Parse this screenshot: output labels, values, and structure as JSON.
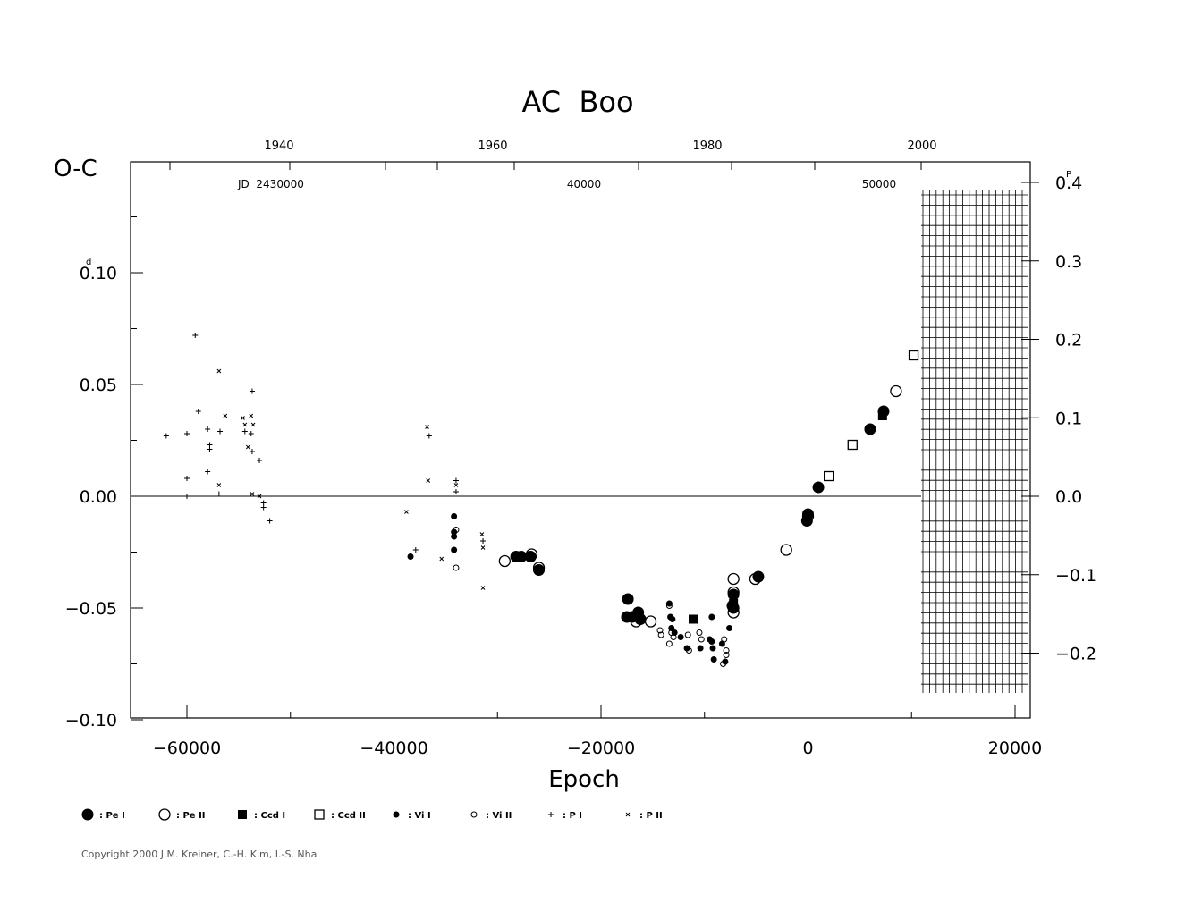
{
  "chart_data": {
    "type": "scatter",
    "title": "AC  Boo",
    "ylabel": "O-C",
    "xlabel": "Epoch",
    "xlim": [
      -65000,
      21500
    ],
    "ylim": [
      -0.1,
      0.15
    ],
    "x_ticks": [
      "-60000",
      "-40000",
      "-20000",
      "0",
      "20000"
    ],
    "y_ticks": [
      "0.10",
      "0.05",
      "0.00",
      "-0.05",
      "-0.10"
    ],
    "y_unit_mark": "d",
    "right_ticks": [
      "0.4",
      "0.3",
      "0.2",
      "0.1",
      "0.0",
      "-0.1",
      "-0.2"
    ],
    "right_unit_mark": "P",
    "top_year_ticks": [
      "1940",
      "1960",
      "1980",
      "2000"
    ],
    "top_jd_label": "JD  2430000",
    "top_jd_ticks": [
      "40000",
      "50000"
    ],
    "grid": false,
    "legend_position": "bottom",
    "legend": [
      {
        "symbol": "pe1",
        "label": ": Pe  I"
      },
      {
        "symbol": "pe2",
        "label": ": Pe  II"
      },
      {
        "symbol": "ccd1",
        "label": ": Ccd  I"
      },
      {
        "symbol": "ccd2",
        "label": ": Ccd  II"
      },
      {
        "symbol": "vi1",
        "label": ": Vi  I"
      },
      {
        "symbol": "vi2",
        "label": ": Vi  II"
      },
      {
        "symbol": "p1",
        "label": ": P  I"
      },
      {
        "symbol": "p2",
        "label": ": P  II"
      }
    ],
    "series": [
      {
        "symbol": "p1",
        "points": [
          [
            -62000,
            0.027
          ],
          [
            -60000,
            0.028
          ],
          [
            -60000,
            0.008
          ],
          [
            -60000,
            0.0
          ],
          [
            -59200,
            0.072
          ],
          [
            -58900,
            0.038
          ],
          [
            -58000,
            0.03
          ],
          [
            -57800,
            0.023
          ],
          [
            -57800,
            0.021
          ],
          [
            -58000,
            0.011
          ],
          [
            -56800,
            0.029
          ],
          [
            -56900,
            0.001
          ],
          [
            -54400,
            0.029
          ],
          [
            -53800,
            0.028
          ],
          [
            -53700,
            0.02
          ],
          [
            -53700,
            0.047
          ],
          [
            -53000,
            0.016
          ],
          [
            -52600,
            -0.003
          ],
          [
            -52600,
            -0.005
          ],
          [
            -52000,
            -0.011
          ],
          [
            -37900,
            -0.024
          ],
          [
            -36600,
            0.027
          ],
          [
            -34000,
            0.007
          ],
          [
            -34000,
            0.002
          ],
          [
            -31400,
            -0.02
          ]
        ]
      },
      {
        "symbol": "p2",
        "points": [
          [
            -56900,
            0.056
          ],
          [
            -56900,
            0.005
          ],
          [
            -56300,
            0.036
          ],
          [
            -54600,
            0.035
          ],
          [
            -54400,
            0.032
          ],
          [
            -54100,
            0.022
          ],
          [
            -53800,
            0.036
          ],
          [
            -53600,
            0.032
          ],
          [
            -53700,
            0.001
          ],
          [
            -53000,
            0.0
          ],
          [
            -38800,
            -0.007
          ],
          [
            -36800,
            0.031
          ],
          [
            -36700,
            0.007
          ],
          [
            -35400,
            -0.028
          ],
          [
            -34000,
            0.005
          ],
          [
            -31500,
            -0.017
          ],
          [
            -31400,
            -0.023
          ],
          [
            -31400,
            -0.041
          ]
        ]
      },
      {
        "symbol": "vi1",
        "points": [
          [
            -38400,
            -0.027
          ],
          [
            -34200,
            -0.009
          ],
          [
            -34200,
            -0.016
          ],
          [
            -34200,
            -0.018
          ],
          [
            -34200,
            -0.024
          ],
          [
            -13400,
            -0.048
          ],
          [
            -13300,
            -0.054
          ],
          [
            -13100,
            -0.055
          ],
          [
            -13200,
            -0.059
          ],
          [
            -12900,
            -0.061
          ],
          [
            -12300,
            -0.063
          ],
          [
            -11700,
            -0.068
          ],
          [
            -10400,
            -0.068
          ],
          [
            -9500,
            -0.064
          ],
          [
            -9300,
            -0.065
          ],
          [
            -9300,
            -0.054
          ],
          [
            -9200,
            -0.068
          ],
          [
            -9100,
            -0.073
          ],
          [
            -8300,
            -0.066
          ],
          [
            -8000,
            -0.074
          ],
          [
            -7600,
            -0.059
          ]
        ]
      },
      {
        "symbol": "vi2",
        "points": [
          [
            -34000,
            -0.015
          ],
          [
            -34000,
            -0.032
          ],
          [
            -14300,
            -0.06
          ],
          [
            -14200,
            -0.062
          ],
          [
            -13400,
            -0.049
          ],
          [
            -13400,
            -0.066
          ],
          [
            -13200,
            -0.061
          ],
          [
            -13000,
            -0.063
          ],
          [
            -11600,
            -0.062
          ],
          [
            -11500,
            -0.069
          ],
          [
            -10500,
            -0.061
          ],
          [
            -10300,
            -0.064
          ],
          [
            -8200,
            -0.075
          ],
          [
            -8100,
            -0.064
          ],
          [
            -7900,
            -0.069
          ],
          [
            -7900,
            -0.071
          ]
        ]
      },
      {
        "symbol": "pe1",
        "points": [
          [
            -28200,
            -0.027
          ],
          [
            -27700,
            -0.027
          ],
          [
            -26800,
            -0.027
          ],
          [
            -26000,
            -0.033
          ],
          [
            -17400,
            -0.046
          ],
          [
            -17500,
            -0.054
          ],
          [
            -17000,
            -0.054
          ],
          [
            -16400,
            -0.052
          ],
          [
            -16200,
            -0.055
          ],
          [
            -7200,
            -0.044
          ],
          [
            -7200,
            -0.05
          ],
          [
            -7300,
            -0.049
          ],
          [
            -4800,
            -0.036
          ],
          [
            1000,
            0.004
          ],
          [
            0,
            -0.008
          ],
          [
            -100,
            -0.011
          ],
          [
            6000,
            0.03
          ],
          [
            7300,
            0.038
          ]
        ]
      },
      {
        "symbol": "pe2",
        "points": [
          [
            -29300,
            -0.029
          ],
          [
            -26700,
            -0.026
          ],
          [
            -26000,
            -0.032
          ],
          [
            -16600,
            -0.056
          ],
          [
            -15200,
            -0.056
          ],
          [
            -7200,
            -0.037
          ],
          [
            -7200,
            -0.043
          ],
          [
            -7200,
            -0.052
          ],
          [
            -5100,
            -0.037
          ],
          [
            -2100,
            -0.024
          ],
          [
            0,
            -0.009
          ],
          [
            8500,
            0.047
          ]
        ]
      },
      {
        "symbol": "ccd1",
        "points": [
          [
            -11100,
            -0.055
          ],
          [
            -7200,
            -0.048
          ],
          [
            7200,
            0.036
          ]
        ]
      },
      {
        "symbol": "ccd2",
        "points": [
          [
            2000,
            0.009
          ],
          [
            4300,
            0.023
          ],
          [
            10200,
            0.063
          ]
        ]
      }
    ]
  },
  "copyright": "Copyright 2000 J.M. Kreiner, C.-H. Kim, I.-S. Nha"
}
